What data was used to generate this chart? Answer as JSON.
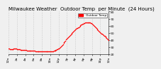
{
  "title": "Milwaukee Weather  Outdoor Temp  per Minute  (24 Hours)",
  "background_color": "#f0f0f0",
  "line_color": "#ff0000",
  "legend_label": "Outdoor Temp",
  "ylim": [
    20,
    80
  ],
  "yticks": [
    20,
    30,
    40,
    50,
    60,
    70,
    80
  ],
  "y_points": [
    28,
    28,
    27,
    27,
    27,
    27,
    27,
    27,
    28,
    28,
    28,
    28,
    28,
    27,
    27,
    27,
    27,
    27,
    26,
    26,
    26,
    26,
    26,
    26,
    26,
    26,
    26,
    26,
    25,
    25,
    25,
    25,
    25,
    25,
    25,
    25,
    25,
    25,
    25,
    25,
    25,
    24,
    24,
    24,
    24,
    24,
    24,
    24,
    24,
    24,
    24,
    24,
    24,
    24,
    24,
    24,
    24,
    24,
    24,
    24,
    24,
    24,
    24,
    24,
    24,
    24,
    24,
    24,
    24,
    25,
    25,
    25,
    26,
    26,
    27,
    27,
    28,
    28,
    29,
    30,
    31,
    32,
    33,
    34,
    36,
    37,
    38,
    39,
    41,
    42,
    43,
    44,
    45,
    46,
    47,
    48,
    49,
    50,
    51,
    52,
    53,
    54,
    55,
    56,
    57,
    57,
    58,
    58,
    59,
    60,
    61,
    62,
    62,
    63,
    63,
    64,
    64,
    65,
    65,
    65,
    65,
    65,
    65,
    65,
    65,
    65,
    64,
    64,
    63,
    62,
    61,
    60,
    59,
    58,
    57,
    56,
    55,
    54,
    53,
    52,
    51,
    50,
    49,
    49,
    48,
    47,
    46,
    46,
    45,
    44,
    43,
    42,
    41,
    40
  ],
  "xlim": [
    0,
    1439
  ],
  "title_fontsize": 5.0,
  "tick_fontsize": 3.2,
  "marker_size": 1.2,
  "vgrid_positions": [
    0,
    120,
    240,
    360,
    480,
    600,
    720,
    840,
    960,
    1080,
    1200,
    1320,
    1440
  ],
  "xtick_labels": [
    "12a",
    "2a",
    "4a",
    "6a",
    "8a",
    "10a",
    "12p",
    "2p",
    "4p",
    "6p",
    "8p",
    "10p",
    "12a"
  ]
}
